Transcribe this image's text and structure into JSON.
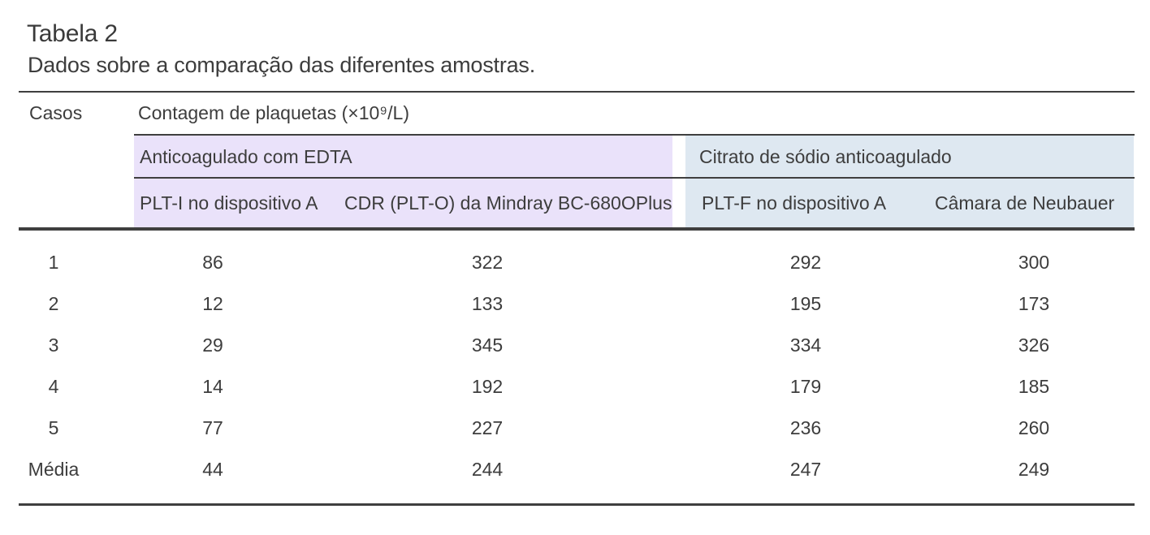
{
  "title": "Tabela 2",
  "subtitle": "Dados sobre a comparação das diferentes amostras.",
  "table": {
    "corner_header": "Casos",
    "main_header": "Contagem de plaquetas (×10⁹/L)",
    "groups": [
      {
        "label": "Anticoagulado com EDTA",
        "bg_color": "#eae2fa"
      },
      {
        "label": "Citrato de sódio anticoagulado",
        "bg_color": "#dee8f1"
      }
    ],
    "columns": [
      "PLT-I no dispositivo A",
      "CDR (PLT-O) da Mindray BC-680OPlus",
      "PLT-F no dispositivo A",
      "Câmara de Neubauer"
    ],
    "rows": [
      {
        "caso": "1",
        "values": [
          "86",
          "322",
          "292",
          "300"
        ]
      },
      {
        "caso": "2",
        "values": [
          "12",
          "133",
          "195",
          "173"
        ]
      },
      {
        "caso": "3",
        "values": [
          "29",
          "345",
          "334",
          "326"
        ]
      },
      {
        "caso": "4",
        "values": [
          "14",
          "192",
          "179",
          "185"
        ]
      },
      {
        "caso": "5",
        "values": [
          "77",
          "227",
          "236",
          "260"
        ]
      },
      {
        "caso": "Média",
        "values": [
          "44",
          "244",
          "247",
          "249"
        ]
      }
    ]
  },
  "colors": {
    "text": "#3d3d3d",
    "rule": "#3f3f3f",
    "edta_bg": "#eae2fa",
    "citrato_bg": "#dee8f1",
    "page_bg": "#ffffff"
  }
}
